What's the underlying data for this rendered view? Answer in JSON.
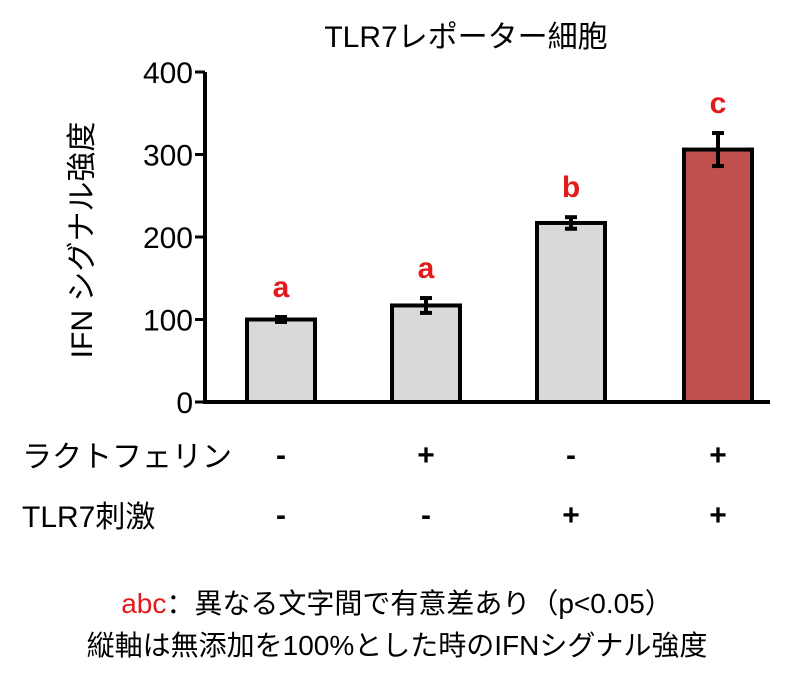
{
  "chart_data": {
    "type": "bar",
    "title": "TLR7レポーター細胞",
    "ylabel": "IFN シグナル強度",
    "ylim": [
      0,
      400
    ],
    "yticks": [
      0,
      100,
      200,
      300,
      400
    ],
    "grid": false,
    "values": [
      100,
      117,
      217,
      306
    ],
    "errors": [
      3,
      9,
      7,
      20
    ],
    "significance": [
      "a",
      "a",
      "b",
      "c"
    ],
    "bar_colors": [
      "#d9d9d9",
      "#d9d9d9",
      "#d9d9d9",
      "#c0504d"
    ],
    "sig_color": "#e31a1c",
    "conditions": [
      {
        "label": "ラクトフェリン",
        "values": [
          "-",
          "+",
          "-",
          "+"
        ]
      },
      {
        "label": "TLR7刺激",
        "values": [
          "-",
          "-",
          "+",
          "+"
        ]
      }
    ]
  },
  "notes": {
    "sig_letters": "abc",
    "sig_text": "：異なる文字間で有意差あり（p<0.05）",
    "line2": "縦軸は無添加を100%とした時のIFNシグナル強度"
  }
}
